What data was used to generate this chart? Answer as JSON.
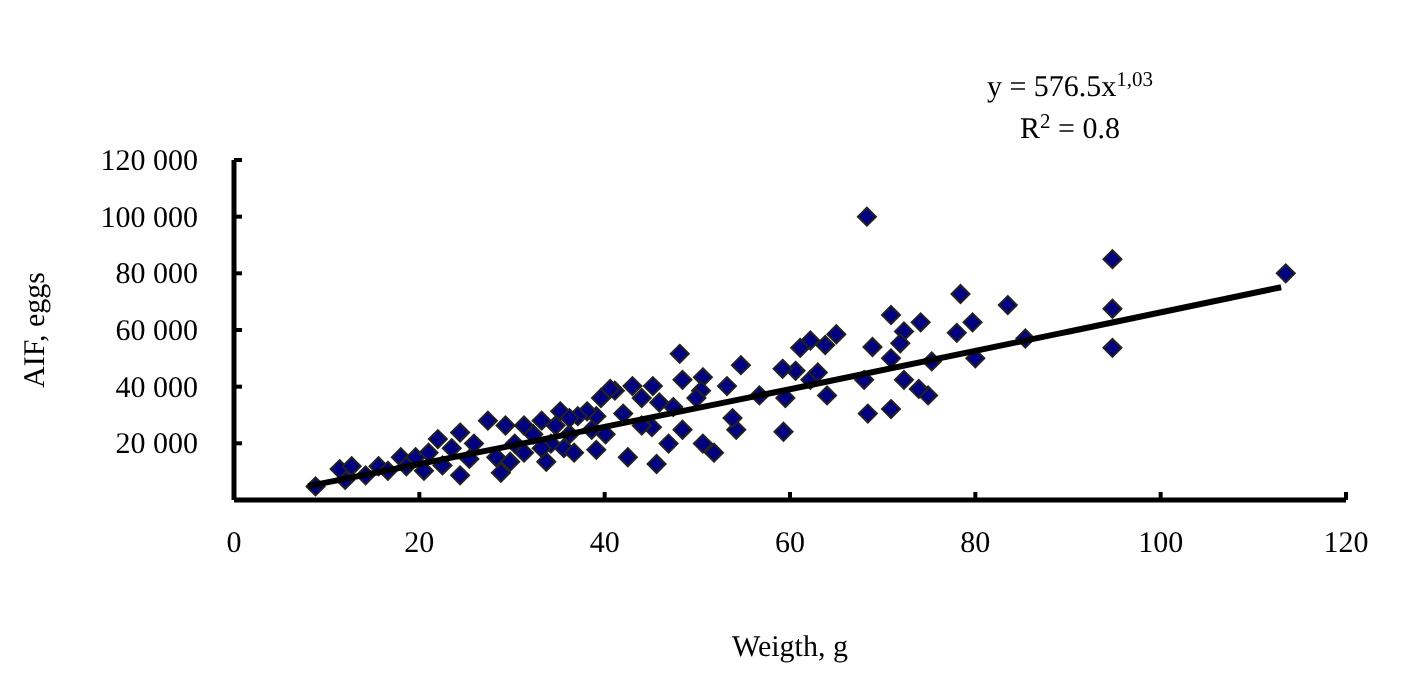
{
  "chart_data": {
    "type": "scatter",
    "xlabel": "Weigth,  g",
    "ylabel": "AIF, eggs",
    "xlim": [
      0,
      120
    ],
    "xticks": [
      0,
      20,
      40,
      60,
      80,
      100,
      120
    ],
    "ylim": [
      0,
      120000
    ],
    "yticks": [
      {
        "value": 0,
        "label": null
      },
      {
        "value": 20000,
        "label": "20 000"
      },
      {
        "value": 40000,
        "label": "40 000"
      },
      {
        "value": 60000,
        "label": "60 000"
      },
      {
        "value": 80000,
        "label": "80 000"
      },
      {
        "value": 100000,
        "label": "100 000"
      },
      {
        "value": 120000,
        "label": "120 000"
      }
    ],
    "grid": false,
    "annotations": [
      "y = 576.5x$^{1,03}$",
      "R$^{2}$ = 0.8"
    ],
    "series": [
      {
        "color": "#000080",
        "marker": "diamond",
        "x": [
          8.8,
          113.5,
          94.8,
          94.8,
          94.8,
          68.3,
          78.4,
          83.5,
          85.4,
          79.7,
          78,
          80,
          74.1,
          70.9,
          72.3,
          71.9,
          74.9,
          73.9,
          70.9,
          68.4,
          68.9,
          70.9,
          72.3,
          68,
          75.3,
          65,
          63.8,
          62.2,
          61.1,
          64,
          60.6,
          59.2,
          59.5,
          59.3,
          62.2,
          63,
          56.7,
          54.7,
          54.2,
          53.2,
          53.8,
          51.8,
          50.6,
          50.4,
          50.6,
          48.1,
          48.4,
          47.4,
          45.6,
          46.9,
          45.2,
          44,
          45.1,
          43,
          41.1,
          42,
          42.5,
          40.1,
          39.1,
          39.1,
          38.1,
          12,
          11.4,
          12.7,
          14.2,
          15.6,
          16.6,
          18,
          18.6,
          20.5,
          21,
          22,
          23.5,
          24.4,
          24.4,
          25.9,
          27.4,
          28.3,
          28.8,
          29.3,
          30.3,
          31.3,
          32.3,
          33.2,
          33.7,
          34.7,
          35.2,
          35.6,
          36.2,
          37.1,
          36.7,
          38.6,
          34.2,
          31.3,
          19.6,
          22.5,
          25.4,
          29.8,
          33.2,
          39.6,
          40.6,
          36.2,
          44,
          45.9,
          48.4,
          49.9
        ],
        "values": [
          4800,
          80000,
          85000,
          67500,
          53700,
          100000,
          72700,
          68800,
          57000,
          62700,
          59000,
          50000,
          62700,
          65300,
          59500,
          55300,
          36900,
          39200,
          32100,
          30500,
          54000,
          50000,
          42400,
          42400,
          48900,
          58500,
          54700,
          56300,
          53700,
          36900,
          45600,
          46300,
          36000,
          24100,
          42400,
          45000,
          36900,
          47600,
          24800,
          40200,
          28900,
          16700,
          43300,
          38600,
          19900,
          51600,
          24800,
          32800,
          12700,
          19900,
          40200,
          36000,
          25700,
          40200,
          38600,
          30500,
          15100,
          23200,
          29600,
          17700,
          31300,
          7100,
          10900,
          11900,
          8700,
          11900,
          10300,
          15100,
          11900,
          10300,
          16700,
          21500,
          18300,
          23800,
          8700,
          19900,
          28000,
          15100,
          9600,
          26300,
          19900,
          16700,
          23200,
          28000,
          13500,
          26300,
          31300,
          18300,
          23200,
          29600,
          16700,
          24800,
          19900,
          26300,
          15100,
          12200,
          14500,
          13500,
          18300,
          36000,
          39200,
          28900,
          26300,
          34400,
          42400,
          36000
        ]
      },
      {
        "type": "line",
        "color": "#000000",
        "marker": "none",
        "line_style": "solid",
        "x": [
          8,
          30,
          60,
          90,
          113
        ],
        "values": [
          4900,
          19200,
          39100,
          59400,
          75100
        ]
      }
    ]
  }
}
